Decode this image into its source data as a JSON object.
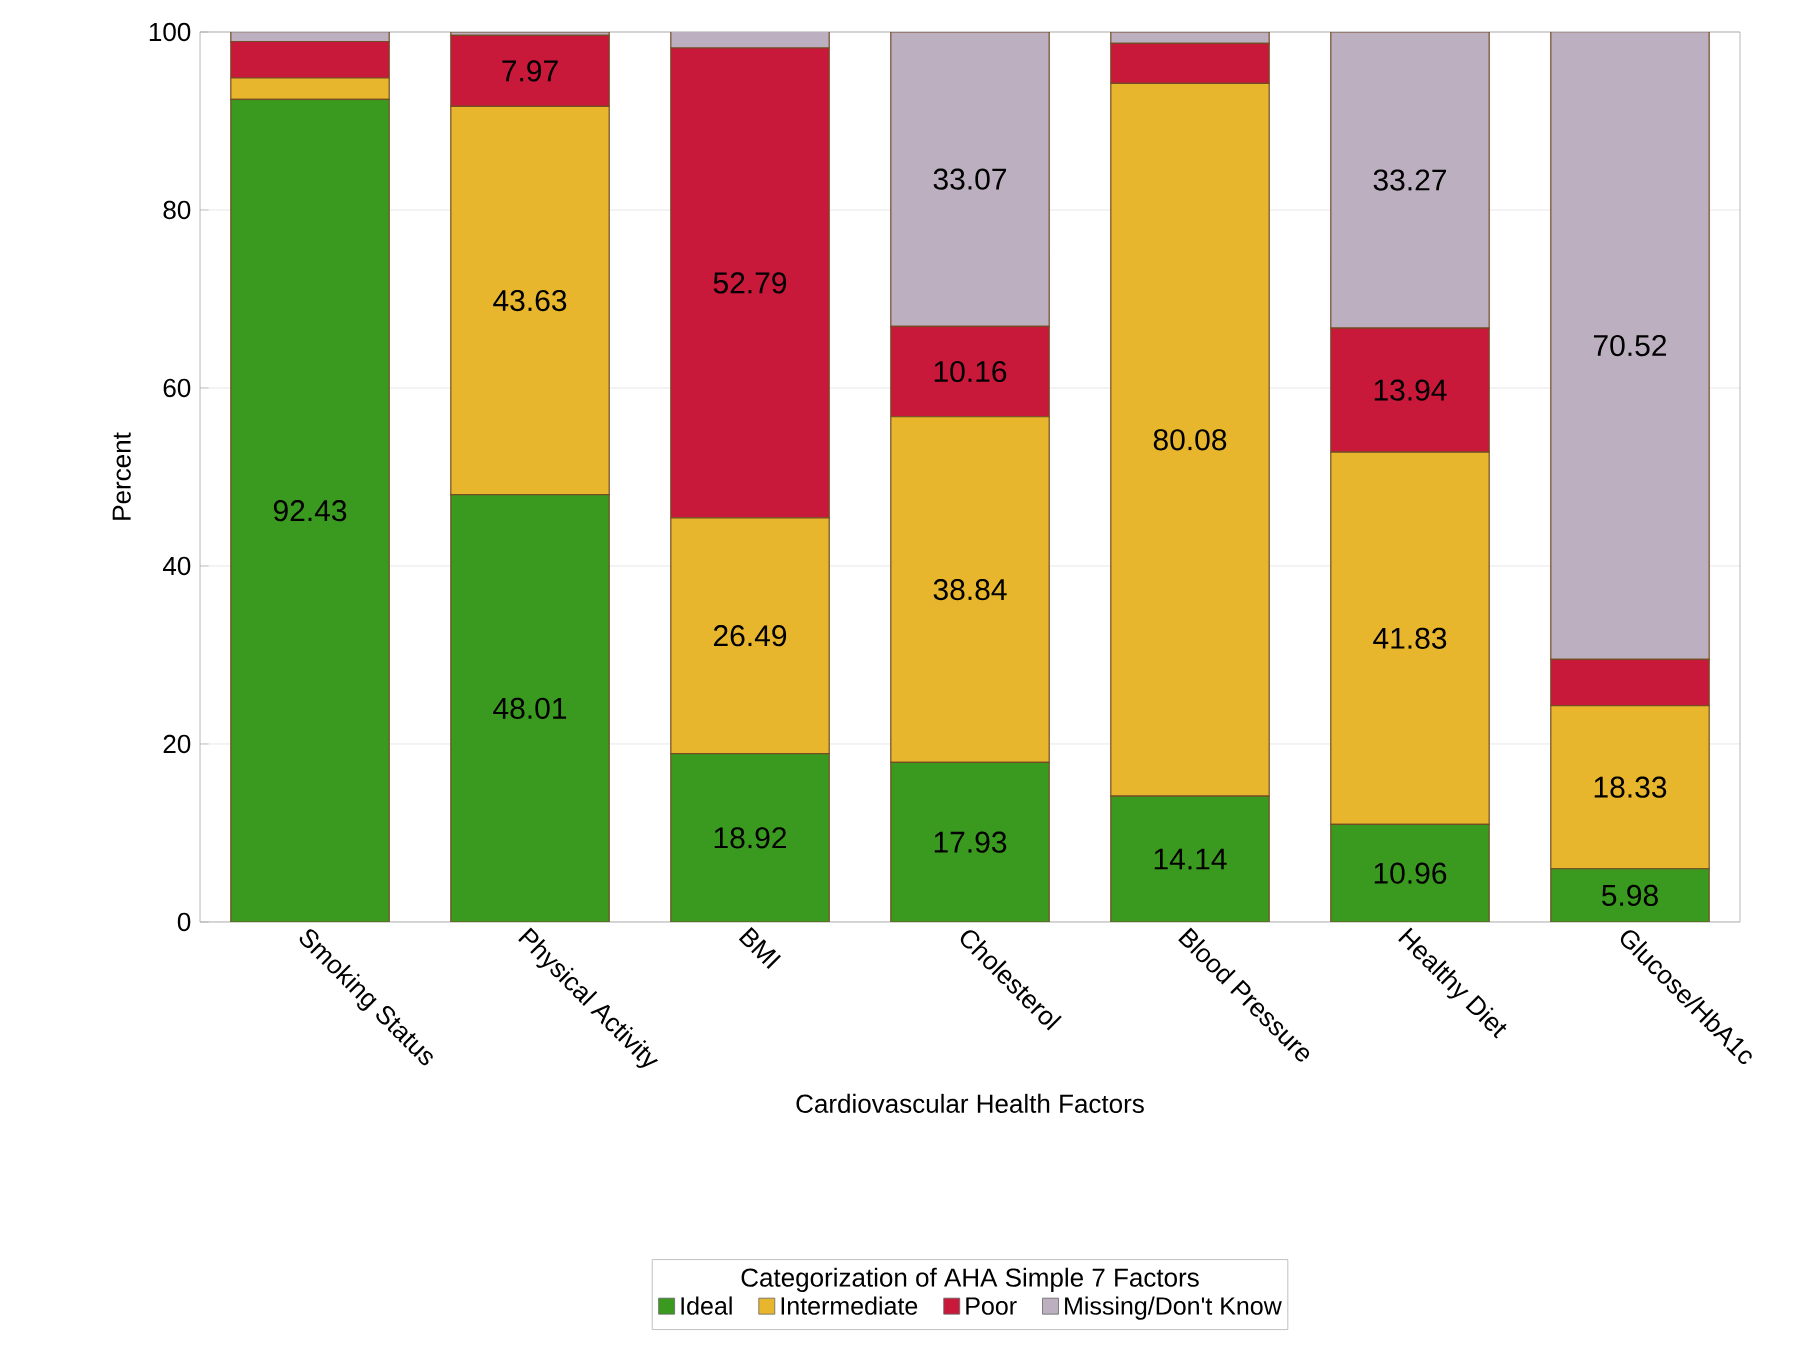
{
  "chart_data": {
    "type": "bar",
    "stacked": true,
    "xlabel": "Cardiovascular Health Factors",
    "ylabel": "Percent",
    "legend_title": "Categorization of AHA Simple 7 Factors",
    "categories": [
      "Smoking Status",
      "Physical Activity",
      "BMI",
      "Cholesterol",
      "Blood Pressure",
      "Healthy Diet",
      "Glucose/HbA1c"
    ],
    "series": [
      {
        "name": "Ideal",
        "color": "#3a9a1f",
        "values": [
          92.43,
          48.01,
          18.92,
          17.93,
          14.14,
          10.96,
          5.98
        ],
        "value_labels": [
          "92.43",
          "48.01",
          "18.92",
          "17.93",
          "14.14",
          "10.96",
          "5.98"
        ]
      },
      {
        "name": "Intermediate",
        "color": "#e8b62c",
        "values": [
          2.4,
          43.63,
          26.49,
          38.84,
          80.08,
          41.83,
          18.33
        ],
        "value_labels": [
          null,
          "43.63",
          "26.49",
          "38.84",
          "80.08",
          "41.83",
          "18.33"
        ]
      },
      {
        "name": "Poor",
        "color": "#c8193a",
        "values": [
          4.1,
          7.97,
          52.79,
          10.16,
          4.5,
          13.94,
          5.2
        ],
        "value_labels": [
          null,
          "7.97",
          "52.79",
          "10.16",
          null,
          "13.94",
          null
        ]
      },
      {
        "name": "Missing/Don't Know",
        "color": "#bcb0c0",
        "values": [
          1.1,
          0.4,
          2.0,
          33.07,
          1.3,
          33.27,
          70.52
        ],
        "value_labels": [
          null,
          null,
          null,
          "33.07",
          null,
          "33.27",
          "70.52"
        ]
      }
    ],
    "ylim": [
      0,
      100
    ],
    "yticks": [
      0,
      20,
      40,
      60,
      80,
      100
    ],
    "grid": "y",
    "legend": "bottom"
  }
}
